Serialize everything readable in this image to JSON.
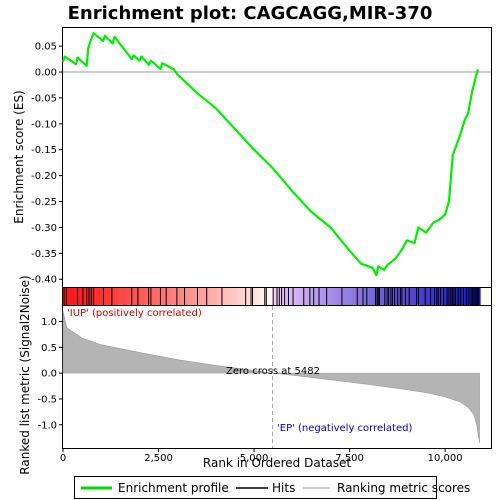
{
  "chart_data": {
    "type": "line",
    "title": "Enrichment plot: CAGCAGG,MIR-370",
    "xlabel": "Rank in Ordered Dataset",
    "ylabel_top": "Enrichment score (ES)",
    "ylabel_bottom": "Ranked list metric (Signal2Noise)",
    "x_ticks": [
      "0",
      "2,500",
      "5,000",
      "7,500",
      "10,000"
    ],
    "x_tick_values": [
      0,
      2500,
      5000,
      7500,
      10000
    ],
    "es_y_ticks": [
      "0.05",
      "0.00",
      "-0.05",
      "-0.10",
      "-0.15",
      "-0.20",
      "-0.25",
      "-0.30",
      "-0.35",
      "-0.40"
    ],
    "es_y_tick_values": [
      0.05,
      0.0,
      -0.05,
      -0.1,
      -0.15,
      -0.2,
      -0.25,
      -0.3,
      -0.35,
      -0.4
    ],
    "metric_y_ticks": [
      "1.0",
      "0.5",
      "0.0",
      "-0.5",
      "-1.0"
    ],
    "metric_y_tick_values": [
      1.0,
      0.5,
      0.0,
      -0.5,
      -1.0
    ],
    "xlim": [
      0,
      11200
    ],
    "es_ylim": [
      -0.415,
      0.085
    ],
    "metric_ylim": [
      -1.45,
      1.3
    ],
    "n_genes": 10900,
    "zero_cross": 5482,
    "zero_cross_label": "Zero cross at 5482",
    "positive_label": "'IUP' (positively correlated)",
    "negative_label": "'EP' (negatively correlated)",
    "legend": [
      {
        "label": "Enrichment profile",
        "color": "#00dd00"
      },
      {
        "label": "Hits",
        "color": "#000000"
      },
      {
        "label": "Ranking metric scores",
        "color": "#bbbbbb"
      }
    ],
    "colors": {
      "es_line": "#00ee00",
      "hits": "#000000",
      "metric_fill": "#b4b4b4",
      "zero_line": "#aaaaaa",
      "positive_text": "#cc0000",
      "negative_text": "#0000cc"
    },
    "es_profile": [
      [
        0,
        0.02
      ],
      [
        50,
        0.03
      ],
      [
        340,
        0.015
      ],
      [
        380,
        0.028
      ],
      [
        620,
        0.012
      ],
      [
        660,
        0.045
      ],
      [
        720,
        0.06
      ],
      [
        800,
        0.075
      ],
      [
        1050,
        0.06
      ],
      [
        1100,
        0.07
      ],
      [
        1300,
        0.055
      ],
      [
        1350,
        0.068
      ],
      [
        1800,
        0.025
      ],
      [
        1850,
        0.032
      ],
      [
        2000,
        0.022
      ],
      [
        2050,
        0.03
      ],
      [
        2250,
        0.014
      ],
      [
        2300,
        0.022
      ],
      [
        2550,
        0.006
      ],
      [
        2600,
        0.017
      ],
      [
        2900,
        0.005
      ],
      [
        3000,
        -0.005
      ],
      [
        3500,
        -0.04
      ],
      [
        4000,
        -0.07
      ],
      [
        4500,
        -0.11
      ],
      [
        5000,
        -0.15
      ],
      [
        5482,
        -0.185
      ],
      [
        6000,
        -0.23
      ],
      [
        6500,
        -0.27
      ],
      [
        7000,
        -0.3
      ],
      [
        7500,
        -0.345
      ],
      [
        7800,
        -0.37
      ],
      [
        8100,
        -0.378
      ],
      [
        8200,
        -0.392
      ],
      [
        8250,
        -0.375
      ],
      [
        8400,
        -0.382
      ],
      [
        8500,
        -0.372
      ],
      [
        8700,
        -0.36
      ],
      [
        8850,
        -0.345
      ],
      [
        9000,
        -0.325
      ],
      [
        9200,
        -0.33
      ],
      [
        9300,
        -0.3
      ],
      [
        9500,
        -0.31
      ],
      [
        9700,
        -0.29
      ],
      [
        9850,
        -0.285
      ],
      [
        10000,
        -0.275
      ],
      [
        10100,
        -0.25
      ],
      [
        10200,
        -0.16
      ],
      [
        10300,
        -0.14
      ],
      [
        10400,
        -0.12
      ],
      [
        10500,
        -0.095
      ],
      [
        10600,
        -0.08
      ],
      [
        10700,
        -0.04
      ],
      [
        10800,
        -0.01
      ],
      [
        10860,
        0.005
      ]
    ],
    "hits": [
      30,
      90,
      380,
      520,
      620,
      680,
      740,
      800,
      1060,
      1280,
      1800,
      1960,
      2240,
      2300,
      2550,
      2700,
      2980,
      3180,
      3520,
      3760,
      4160,
      4780,
      4920,
      4960,
      5280,
      5320,
      5500,
      5600,
      5660,
      5720,
      5800,
      5900,
      6020,
      6300,
      6460,
      6560,
      6700,
      6900,
      7300,
      7700,
      7850,
      7950,
      8180,
      8220,
      8250,
      8280,
      8420,
      8480,
      8520,
      8580,
      8620,
      8680,
      8760,
      8830,
      8870,
      8960,
      9060,
      9250,
      9300,
      9480,
      9620,
      9720,
      9780,
      9820,
      9880,
      9960,
      10050,
      10100,
      10150,
      10190,
      10230,
      10270,
      10340,
      10400,
      10480,
      10560,
      10620,
      10680,
      10720,
      10760,
      10800,
      10840,
      10870
    ],
    "metric_curve": [
      [
        0,
        1.2
      ],
      [
        100,
        0.88
      ],
      [
        500,
        0.68
      ],
      [
        1000,
        0.55
      ],
      [
        2000,
        0.4
      ],
      [
        3000,
        0.26
      ],
      [
        4000,
        0.15
      ],
      [
        5000,
        0.05
      ],
      [
        5482,
        0.0
      ],
      [
        6000,
        -0.04
      ],
      [
        7000,
        -0.13
      ],
      [
        8000,
        -0.22
      ],
      [
        9000,
        -0.32
      ],
      [
        9500,
        -0.38
      ],
      [
        10000,
        -0.46
      ],
      [
        10400,
        -0.56
      ],
      [
        10600,
        -0.66
      ],
      [
        10750,
        -0.8
      ],
      [
        10820,
        -0.98
      ],
      [
        10870,
        -1.22
      ],
      [
        10900,
        -1.35
      ]
    ]
  }
}
